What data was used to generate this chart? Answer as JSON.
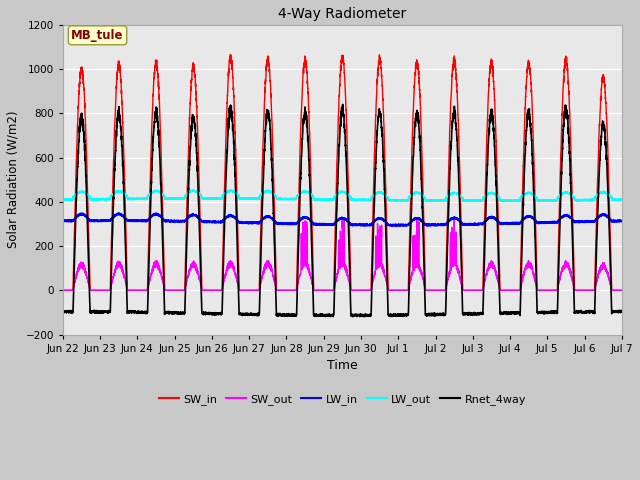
{
  "title": "4-Way Radiometer",
  "xlabel": "Time",
  "ylabel": "Solar Radiation (W/m2)",
  "ylim": [
    -200,
    1200
  ],
  "xlim_start": 0,
  "xlim_end": 15,
  "annotation_label": "MB_tule",
  "annotation_box_color": "#ffffcc",
  "annotation_text_color": "#8b0000",
  "fig_bg_color": "#c8c8c8",
  "plot_bg_color": "#e8e8e8",
  "grid_color": "#ffffff",
  "x_tick_labels": [
    "Jun 22",
    "Jun 23",
    "Jun 24",
    "Jun 25",
    "Jun 26",
    "Jun 27",
    "Jun 28",
    "Jun 29",
    "Jun 30",
    "Jul 1",
    "Jul 2",
    "Jul 3",
    "Jul 4",
    "Jul 5",
    "Jul 6",
    "Jul 7"
  ],
  "x_tick_positions": [
    0,
    1,
    2,
    3,
    4,
    5,
    6,
    7,
    8,
    9,
    10,
    11,
    12,
    13,
    14,
    15
  ],
  "y_ticks": [
    -200,
    0,
    200,
    400,
    600,
    800,
    1000,
    1200
  ],
  "legend_entries": [
    "SW_in",
    "SW_out",
    "LW_in",
    "LW_out",
    "Rnet_4way"
  ],
  "line_colors": [
    "red",
    "magenta",
    "blue",
    "cyan",
    "black"
  ],
  "line_widths": [
    1.0,
    1.0,
    1.2,
    1.2,
    1.2
  ],
  "num_days": 15,
  "points_per_day": 288,
  "peak_sw": [
    1000,
    1020,
    1030,
    1010,
    1050,
    1045,
    1040,
    1050,
    1045,
    1030,
    1040,
    1030,
    1025,
    1040,
    960
  ],
  "lw_out_base": 420,
  "lw_in_base": 300,
  "rnet_night": -100
}
